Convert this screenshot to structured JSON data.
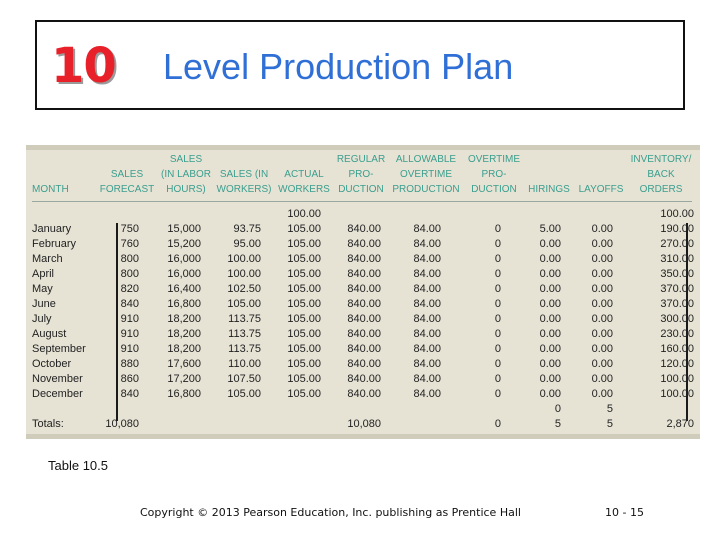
{
  "slide": {
    "chapter_number": "10",
    "title": "Level Production Plan",
    "caption": "Table 10.5",
    "footer": "Copyright © 2013 Pearson Education, Inc. publishing as Prentice Hall",
    "page": "10 - 15",
    "colors": {
      "chapter": "#e8202a",
      "title": "#2f6fd6",
      "header": "#3a9e8e",
      "table_bg": "#e6e3d5"
    }
  },
  "table": {
    "headers": [
      "MONTH",
      "SALES\nFORECAST",
      "SALES\n(IN LABOR\nHOURS)",
      "SALES (IN\nWORKERS)",
      "ACTUAL\nWORKERS",
      "REGULAR\nPRO-\nDUCTION",
      "ALLOWABLE\nOVERTIME\nPRODUCTION",
      "OVERTIME\nPRO-\nDUCTION",
      "HIRINGS",
      "LAYOFFS",
      "INVENTORY/\nBACK\nORDERS"
    ],
    "initial_row": [
      "",
      "",
      "",
      "",
      "100.00",
      "",
      "",
      "",
      "",
      "",
      "100.00"
    ],
    "rows": [
      [
        "January",
        "750",
        "15,000",
        "93.75",
        "105.00",
        "840.00",
        "84.00",
        "0",
        "5.00",
        "0.00",
        "190.00"
      ],
      [
        "February",
        "760",
        "15,200",
        "95.00",
        "105.00",
        "840.00",
        "84.00",
        "0",
        "0.00",
        "0.00",
        "270.00"
      ],
      [
        "March",
        "800",
        "16,000",
        "100.00",
        "105.00",
        "840.00",
        "84.00",
        "0",
        "0.00",
        "0.00",
        "310.00"
      ],
      [
        "April",
        "800",
        "16,000",
        "100.00",
        "105.00",
        "840.00",
        "84.00",
        "0",
        "0.00",
        "0.00",
        "350.00"
      ],
      [
        "May",
        "820",
        "16,400",
        "102.50",
        "105.00",
        "840.00",
        "84.00",
        "0",
        "0.00",
        "0.00",
        "370.00"
      ],
      [
        "June",
        "840",
        "16,800",
        "105.00",
        "105.00",
        "840.00",
        "84.00",
        "0",
        "0.00",
        "0.00",
        "370.00"
      ],
      [
        "July",
        "910",
        "18,200",
        "113.75",
        "105.00",
        "840.00",
        "84.00",
        "0",
        "0.00",
        "0.00",
        "300.00"
      ],
      [
        "August",
        "910",
        "18,200",
        "113.75",
        "105.00",
        "840.00",
        "84.00",
        "0",
        "0.00",
        "0.00",
        "230.00"
      ],
      [
        "September",
        "910",
        "18,200",
        "113.75",
        "105.00",
        "840.00",
        "84.00",
        "0",
        "0.00",
        "0.00",
        "160.00"
      ],
      [
        "October",
        "880",
        "17,600",
        "110.00",
        "105.00",
        "840.00",
        "84.00",
        "0",
        "0.00",
        "0.00",
        "120.00"
      ],
      [
        "November",
        "860",
        "17,200",
        "107.50",
        "105.00",
        "840.00",
        "84.00",
        "0",
        "0.00",
        "0.00",
        "100.00"
      ],
      [
        "December",
        "840",
        "16,800",
        "105.00",
        "105.00",
        "840.00",
        "84.00",
        "0",
        "0.00",
        "0.00",
        "100.00"
      ]
    ],
    "end_row": [
      "",
      "",
      "",
      "",
      "",
      "",
      "",
      "",
      "0",
      "5",
      ""
    ],
    "totals_row": [
      "Totals:",
      "10,080",
      "",
      "",
      "",
      "10,080",
      "",
      "0",
      "5",
      "5",
      "2,870"
    ]
  }
}
